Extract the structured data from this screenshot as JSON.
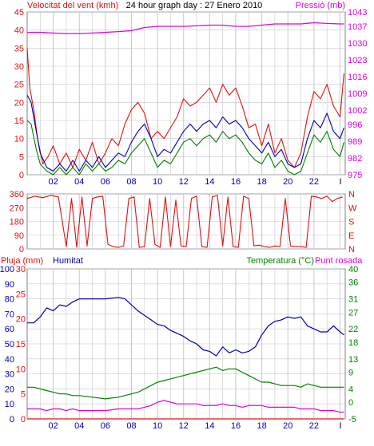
{
  "colors": {
    "frame": "#808080",
    "grid": "#c8c8c8",
    "red": "#e01010",
    "blue": "#0000b0",
    "green": "#008000",
    "magenta": "#e000e0",
    "black": "#000000"
  },
  "chart_data": [
    {
      "type": "line",
      "title": "24 hour graph day : 27 Enero 2010",
      "left_label": "Velocitat del vent (kmh)",
      "right_label": "Pressió (mb)",
      "x_ticks": [
        "02",
        "04",
        "06",
        "08",
        "10",
        "12",
        "14",
        "16",
        "18",
        "20",
        "22"
      ],
      "x_end_label": "I",
      "x_range": [
        0,
        24.4
      ],
      "ylim": [
        0,
        45
      ],
      "y_ticks": [
        0,
        5,
        10,
        15,
        20,
        25,
        30,
        35,
        40,
        45
      ],
      "y2lim": [
        975,
        1043
      ],
      "y2_ticks": [
        975,
        982,
        989,
        996,
        1002,
        1009,
        1016,
        1023,
        1030,
        1037,
        1043
      ],
      "grid": true,
      "series": [
        {
          "name": "Gust",
          "color": "red",
          "axis": "left",
          "x": [
            0,
            0.2,
            0.5,
            0.8,
            1.2,
            1.6,
            2,
            2.5,
            3,
            3.5,
            4,
            4.5,
            5,
            5.5,
            6,
            6.5,
            7,
            7.5,
            8,
            8.5,
            9,
            9.5,
            10,
            10.5,
            11,
            11.5,
            12,
            12.5,
            13,
            13.5,
            14,
            14.5,
            15,
            15.5,
            16,
            16.5,
            17,
            17.5,
            18,
            18.5,
            19,
            19.5,
            20,
            20.5,
            21,
            21.5,
            22,
            22.5,
            23,
            23.5,
            24,
            24.3
          ],
          "values": [
            35,
            24,
            18,
            10,
            3,
            5,
            8,
            3,
            6,
            2,
            7,
            4,
            9,
            3,
            6,
            10,
            8,
            14,
            18,
            20,
            17,
            10,
            12,
            10,
            13,
            16,
            21,
            19,
            20,
            22,
            24,
            20,
            25,
            22,
            24,
            19,
            13,
            14,
            8,
            14,
            6,
            10,
            4,
            2,
            6,
            16,
            23,
            21,
            25,
            19,
            16,
            28
          ]
        },
        {
          "name": "Average",
          "color": "blue",
          "axis": "left",
          "x": [
            0,
            0.3,
            0.7,
            1,
            1.5,
            2,
            2.5,
            3,
            3.5,
            4,
            4.5,
            5,
            5.5,
            6,
            6.5,
            7,
            7.5,
            8,
            8.5,
            9,
            9.5,
            10,
            10.5,
            11,
            11.5,
            12,
            12.5,
            13,
            13.5,
            14,
            14.5,
            15,
            15.5,
            16,
            16.5,
            17,
            17.5,
            18,
            18.5,
            19,
            19.5,
            20,
            20.5,
            21,
            21.5,
            22,
            22.5,
            23,
            23.5,
            24,
            24.3
          ],
          "values": [
            22,
            20,
            12,
            6,
            2,
            1,
            3,
            1,
            4,
            1,
            4,
            2,
            5,
            2,
            4,
            6,
            5,
            9,
            12,
            14,
            10,
            5,
            7,
            6,
            9,
            12,
            14,
            12,
            14,
            15,
            13,
            16,
            14,
            15,
            13,
            10,
            8,
            6,
            9,
            5,
            7,
            3,
            2,
            3,
            10,
            15,
            13,
            17,
            12,
            10,
            13
          ]
        },
        {
          "name": "Min",
          "color": "green",
          "axis": "left",
          "x": [
            0,
            0.3,
            0.7,
            1,
            1.5,
            2,
            2.5,
            3,
            3.5,
            4,
            4.5,
            5,
            5.5,
            6,
            6.5,
            7,
            7.5,
            8,
            8.5,
            9,
            9.5,
            10,
            10.5,
            11,
            11.5,
            12,
            12.5,
            13,
            13.5,
            14,
            14.5,
            15,
            15.5,
            16,
            16.5,
            17,
            17.5,
            18,
            18.5,
            19,
            19.5,
            20,
            20.5,
            21,
            21.5,
            22,
            22.5,
            23,
            23.5,
            24,
            24.3
          ],
          "values": [
            15,
            14,
            7,
            3,
            1,
            0,
            2,
            0,
            2,
            0,
            3,
            1,
            3,
            1,
            2,
            4,
            3,
            6,
            8,
            10,
            6,
            2,
            4,
            3,
            6,
            9,
            10,
            8,
            10,
            11,
            9,
            12,
            10,
            11,
            9,
            6,
            4,
            3,
            6,
            2,
            4,
            1,
            0,
            1,
            6,
            11,
            9,
            12,
            7,
            5,
            9
          ]
        },
        {
          "name": "Pressió",
          "color": "magenta",
          "axis": "right",
          "x": [
            0,
            1,
            2,
            3,
            4,
            5,
            6,
            7,
            8,
            9,
            10,
            11,
            12,
            13,
            14,
            15,
            16,
            17,
            18,
            19,
            20,
            21,
            22,
            23,
            24,
            24.3
          ],
          "values": [
            1034.5,
            1034.5,
            1034.2,
            1034,
            1034,
            1034.2,
            1034.5,
            1034.8,
            1035.2,
            1036.5,
            1037,
            1037,
            1037,
            1037.2,
            1037.5,
            1037.5,
            1037,
            1037,
            1037.5,
            1038,
            1038,
            1038,
            1038.5,
            1038.2,
            1038,
            1038
          ]
        }
      ]
    },
    {
      "type": "line",
      "title": "",
      "left_label": "",
      "right_label": "",
      "x_range": [
        0,
        24.4
      ],
      "ylim": [
        0,
        360
      ],
      "y_ticks": [
        0,
        90,
        180,
        270,
        360
      ],
      "right_ticks": [
        "N",
        "W",
        "S",
        "E",
        "N"
      ],
      "grid": true,
      "series": [
        {
          "name": "Direcció",
          "color": "red",
          "x": [
            0,
            0.6,
            1.2,
            1.8,
            2.4,
            3,
            3.4,
            3.8,
            4.2,
            4.6,
            5,
            5.4,
            5.8,
            6.2,
            6.6,
            7,
            7.4,
            7.8,
            8.2,
            8.6,
            9,
            9.4,
            9.8,
            10.2,
            10.6,
            11,
            11.4,
            11.8,
            12.2,
            12.6,
            13,
            13.4,
            13.8,
            14.2,
            14.6,
            15,
            15.4,
            15.8,
            16.2,
            16.6,
            17,
            17.4,
            17.8,
            18.2,
            18.6,
            19,
            19.4,
            19.8,
            20.2,
            20.6,
            21,
            21.4,
            21.8,
            22.2,
            22.6,
            23,
            23.4,
            23.8,
            24.2
          ],
          "values": [
            330,
            345,
            335,
            350,
            340,
            15,
            330,
            10,
            340,
            20,
            330,
            340,
            345,
            30,
            15,
            10,
            20,
            330,
            340,
            10,
            15,
            330,
            30,
            10,
            340,
            15,
            320,
            20,
            15,
            330,
            345,
            15,
            10,
            340,
            350,
            20,
            340,
            15,
            10,
            345,
            330,
            20,
            25,
            15,
            10,
            20,
            15,
            330,
            20,
            15,
            15,
            10,
            345,
            340,
            330,
            345,
            310,
            330,
            340
          ]
        }
      ]
    },
    {
      "type": "line",
      "title": "",
      "left_label": "Pluja (mm)",
      "left_label2": "Humitat",
      "right_label": "Temperatura (°C)",
      "right_label2": "Punt rosada",
      "x_ticks": [
        "02",
        "04",
        "06",
        "08",
        "10",
        "12",
        "14",
        "16",
        "18",
        "20",
        "22"
      ],
      "x_end_label": "I",
      "x_range": [
        0,
        24.4
      ],
      "rain_ticks": [
        0,
        5,
        10,
        15,
        20,
        25,
        30
      ],
      "humidity_ticks": [
        0,
        10,
        20,
        30,
        40,
        50,
        60,
        70,
        80,
        90,
        100
      ],
      "ylim_humidity": [
        0,
        100
      ],
      "ylim_rain": [
        0,
        30
      ],
      "y2lim": [
        -5,
        40
      ],
      "y2_ticks": [
        -5,
        0,
        4,
        9,
        13,
        18,
        22,
        27,
        31,
        36,
        40
      ],
      "grid": true,
      "series": [
        {
          "name": "Humitat",
          "color": "blue",
          "axis": "humidity",
          "x": [
            0,
            0.5,
            1,
            1.5,
            2,
            2.5,
            3,
            3.5,
            4,
            5,
            6,
            7,
            7.5,
            8,
            8.5,
            9,
            9.5,
            10,
            10.5,
            11,
            11.5,
            12,
            12.5,
            13,
            13.5,
            14,
            14.5,
            15,
            15.5,
            16,
            16.5,
            17,
            17.5,
            18,
            18.5,
            19,
            19.5,
            20,
            20.5,
            21,
            21.5,
            22,
            22.5,
            23,
            23.5,
            24,
            24.3
          ],
          "values": [
            64,
            64,
            68,
            74,
            72,
            76,
            75,
            78,
            80,
            80,
            80,
            81,
            80,
            76,
            72,
            69,
            66,
            63,
            62,
            59,
            57,
            55,
            52,
            50,
            46,
            45,
            42,
            48,
            44,
            46,
            44,
            45,
            48,
            56,
            62,
            65,
            66,
            68,
            67,
            68,
            62,
            60,
            58,
            58,
            62,
            58,
            56
          ]
        },
        {
          "name": "Temperatura",
          "color": "green",
          "axis": "temp",
          "x": [
            0,
            0.5,
            1,
            1.5,
            2,
            2.5,
            3,
            3.5,
            4,
            5,
            6,
            7,
            7.5,
            8,
            8.5,
            9,
            9.5,
            10,
            10.5,
            11,
            11.5,
            12,
            12.5,
            13,
            13.5,
            14,
            14.5,
            15,
            15.5,
            16,
            16.5,
            17,
            17.5,
            18,
            18.5,
            19,
            19.5,
            20,
            20.5,
            21,
            21.5,
            22,
            22.5,
            23,
            23.5,
            24,
            24.3
          ],
          "values": [
            4.5,
            4.5,
            4,
            3.5,
            3,
            2.5,
            2.5,
            2,
            2,
            1.5,
            1,
            1.5,
            2,
            2.5,
            3,
            4,
            5,
            6,
            6.5,
            7,
            7.5,
            8,
            8.5,
            9,
            9.5,
            10,
            10.5,
            9.5,
            10,
            10,
            9,
            8,
            7,
            6,
            6,
            5.5,
            5,
            5,
            5,
            4.5,
            5.5,
            5,
            4.5,
            4.5,
            4.5,
            4.5,
            4.5
          ]
        },
        {
          "name": "Punt rosada",
          "color": "magenta",
          "axis": "temp",
          "x": [
            0,
            0.5,
            1,
            1.5,
            2,
            2.5,
            3,
            3.5,
            4,
            5,
            6,
            7,
            7.5,
            8,
            8.5,
            9,
            9.5,
            10,
            10.5,
            11,
            11.5,
            12,
            12.5,
            13,
            13.5,
            14,
            14.5,
            15,
            15.5,
            16,
            16.5,
            17,
            17.5,
            18,
            18.5,
            19,
            19.5,
            20,
            20.5,
            21,
            21.5,
            22,
            22.5,
            23,
            23.5,
            24,
            24.3
          ],
          "values": [
            -2,
            -2,
            -2,
            -2.5,
            -2,
            -2,
            -2.5,
            -2,
            -2.5,
            -2.5,
            -2.5,
            -2,
            -2,
            -2,
            -2,
            -1.5,
            -1,
            0,
            0.5,
            0,
            -0.5,
            -0.5,
            -0.5,
            -0.5,
            -1,
            -1,
            -1,
            -0.5,
            -1,
            -1,
            -1.5,
            -1,
            -1,
            -1,
            -1.5,
            -1.5,
            -1.5,
            -1.5,
            -1.5,
            -2,
            -2,
            -2,
            -2.5,
            -2.5,
            -2.5,
            -3,
            -3
          ]
        },
        {
          "name": "Pluja",
          "color": "red",
          "axis": "rain",
          "x": [
            0,
            24.3
          ],
          "values": [
            0,
            0
          ]
        }
      ]
    }
  ]
}
